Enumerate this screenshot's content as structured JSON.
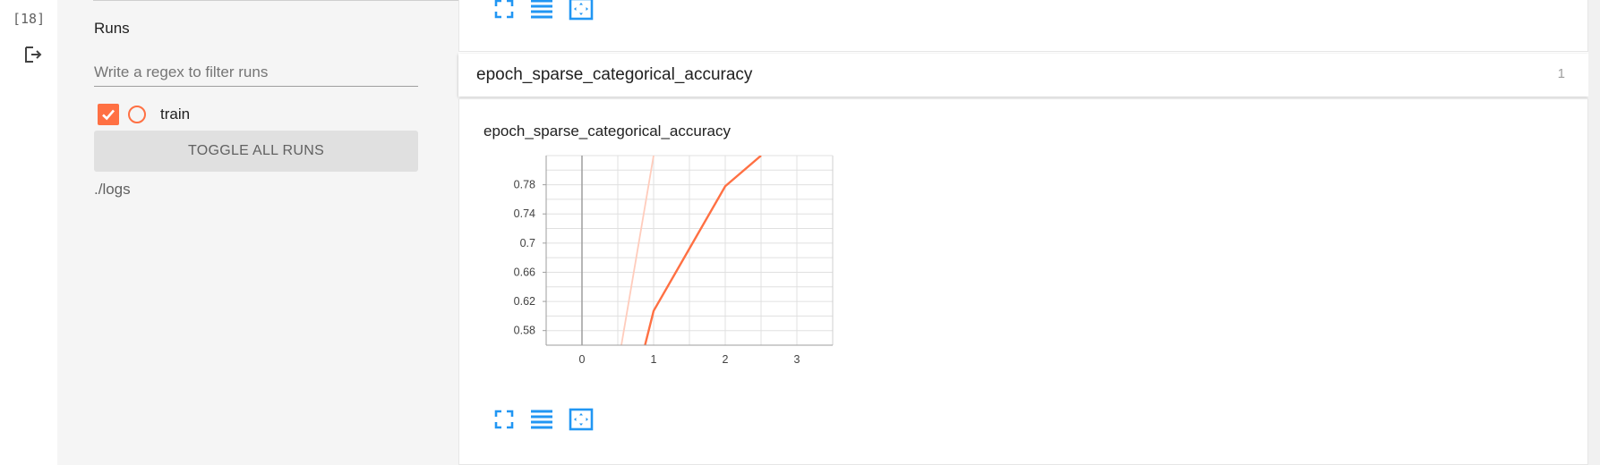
{
  "cell": {
    "number": "[18]",
    "output_icon": "output-arrow-icon"
  },
  "sidebar": {
    "title": "Runs",
    "filter_placeholder": "Write a regex to filter runs",
    "runs": [
      {
        "label": "train",
        "checked": true,
        "color": "#ff7043"
      }
    ],
    "toggle_label": "TOGGLE ALL RUNS",
    "logdir": "./logs"
  },
  "card": {
    "name": "epoch_sparse_categorical_accuracy",
    "count": "1",
    "chart_title": "epoch_sparse_categorical_accuracy",
    "buttons": [
      "fullscreen-icon",
      "toggle-log-scale-icon",
      "fit-domain-icon"
    ]
  },
  "colors": {
    "accent": "#ff7043",
    "accent_faded": "#ffccbc",
    "icon_blue": "#2196f3"
  },
  "chart_data": {
    "type": "line",
    "title": "epoch_sparse_categorical_accuracy",
    "xlabel": "",
    "ylabel": "",
    "x_ticks": [
      "0",
      "1",
      "2",
      "3"
    ],
    "y_ticks": [
      "0.58",
      "0.62",
      "0.66",
      "0.7",
      "0.74",
      "0.78"
    ],
    "xlim": [
      -0.5,
      3.5
    ],
    "ylim": [
      0.56,
      0.82
    ],
    "grid": true,
    "series": [
      {
        "x": [
          0.88,
          1,
          2,
          2.5
        ],
        "y": [
          0.56,
          0.607,
          0.778,
          0.82
        ]
      },
      {
        "x": [
          0.55,
          1
        ],
        "y": [
          0.56,
          0.82
        ],
        "faded": true
      }
    ]
  }
}
